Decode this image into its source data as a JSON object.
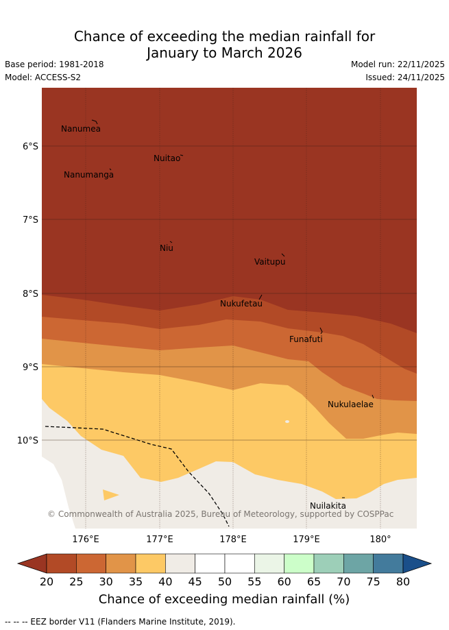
{
  "title_line1": "Chance of exceeding the median rainfall for",
  "title_line2": "January to March 2026",
  "base_period": "Base period: 1981-2018",
  "model": "Model: ACCESS-S2",
  "model_run": "Model run: 22/11/2025",
  "issued": "Issued: 24/11/2025",
  "copyright": "© Commonwealth of Australia 2025, Bureau of Meteorology, supported by COSPPac",
  "lat_labels": [
    "6°S",
    "7°S",
    "8°S",
    "9°S",
    "10°S"
  ],
  "lon_labels": [
    "176°E",
    "177°E",
    "178°E",
    "179°E",
    "180°"
  ],
  "islands": [
    {
      "name": "Nanumea"
    },
    {
      "name": "Nuitao"
    },
    {
      "name": "Nanumanga"
    },
    {
      "name": "Niu"
    },
    {
      "name": "Vaitupu"
    },
    {
      "name": "Nukufetau"
    },
    {
      "name": "Funafuti"
    },
    {
      "name": "Nukulaelae"
    },
    {
      "name": "Nuilakita"
    }
  ],
  "colorbar": {
    "ticks": [
      "20",
      "25",
      "30",
      "35",
      "40",
      "45",
      "50",
      "55",
      "60",
      "65",
      "70",
      "75",
      "80"
    ],
    "colors": [
      "#9a3522",
      "#b24a26",
      "#cc6733",
      "#e19448",
      "#fdc965",
      "#f0ece6",
      "#ffffff",
      "#ffffff",
      "#ebf5e7",
      "#ccfec9",
      "#9dcfb8",
      "#6da5a5",
      "#437b9c",
      "#1a4f8a"
    ],
    "label": "Chance of exceeding median rainfall (%)"
  },
  "footer": "--  --  -- EEZ border V11 (Flanders Marine Institute, 2019)."
}
